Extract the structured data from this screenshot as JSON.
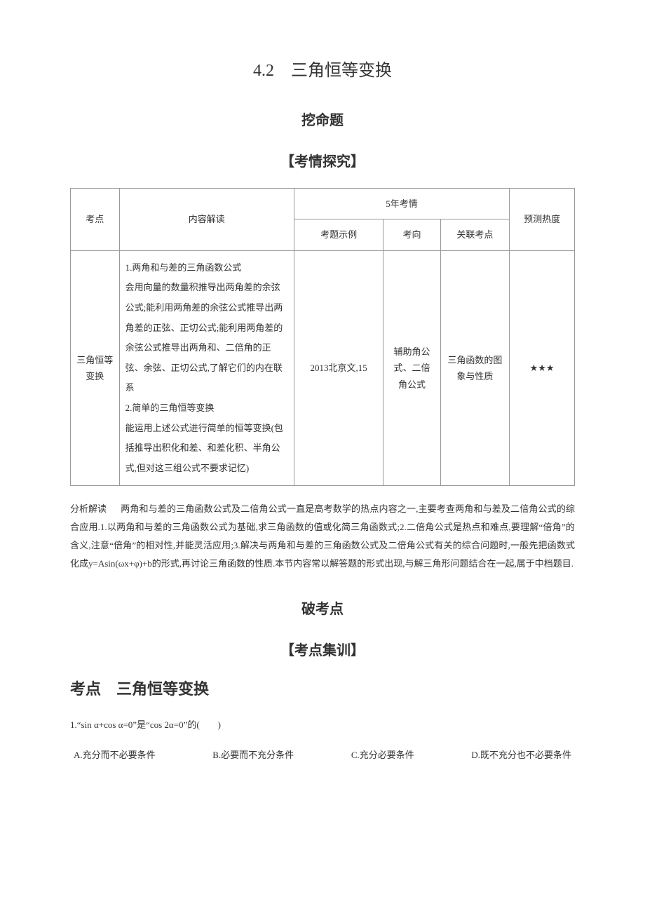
{
  "title": "4.2　三角恒等变换",
  "section1": "挖命题",
  "bracket1": "【考情探究】",
  "table": {
    "headers": {
      "kaodian": "考点",
      "jiedu": "内容解读",
      "kaoqing": "5年考情",
      "shili": "考题示例",
      "kaoxiang": "考向",
      "guanlian": "关联考点",
      "redu": "预测热度"
    },
    "row": {
      "kaodian": "三角恒等变换",
      "jiedu": "1.两角和与差的三角函数公式\n会用向量的数量积推导出两角差的余弦公式;能利用两角差的余弦公式推导出两角差的正弦、正切公式;能利用两角差的余弦公式推导出两角和、二倍角的正弦、余弦、正切公式,了解它们的内在联系\n2.简单的三角恒等变换\n能运用上述公式进行简单的恒等变换(包括推导出积化和差、和差化积、半角公式,但对这三组公式不要求记忆)",
      "shili": "2013北京文,15",
      "kaoxiang": "辅助角公式、二倍角公式",
      "guanlian": "三角函数的图象与性质",
      "redu": "★★★"
    }
  },
  "analysis": {
    "label": "分析解读",
    "text": "两角和与差的三角函数公式及二倍角公式一直是高考数学的热点内容之一,主要考查两角和与差及二倍角公式的综合应用.1.以两角和与差的三角函数公式为基础,求三角函数的值或化简三角函数式;2.二倍角公式是热点和难点,要理解“倍角”的含义,注意“倍角”的相对性,并能灵活应用;3.解决与两角和与差的三角函数公式及二倍角公式有关的综合问题时,一般先把函数式化成y=Asin(ωx+φ)+b的形式,再讨论三角函数的性质.本节内容常以解答题的形式出现,与解三角形问题结合在一起,属于中档题目."
  },
  "section2": "破考点",
  "bracket2": "【考点集训】",
  "kaodian_heading": "考点　三角恒等变换",
  "q1": {
    "text": "1.“sin α+cos α=0”是“cos 2α=0”的(　　)",
    "options": {
      "a": "A.充分而不必要条件",
      "b": "B.必要而不充分条件",
      "c": "C.充分必要条件",
      "d": "D.既不充分也不必要条件"
    }
  },
  "colors": {
    "text": "#333333",
    "border": "#999999",
    "background": "#ffffff"
  }
}
